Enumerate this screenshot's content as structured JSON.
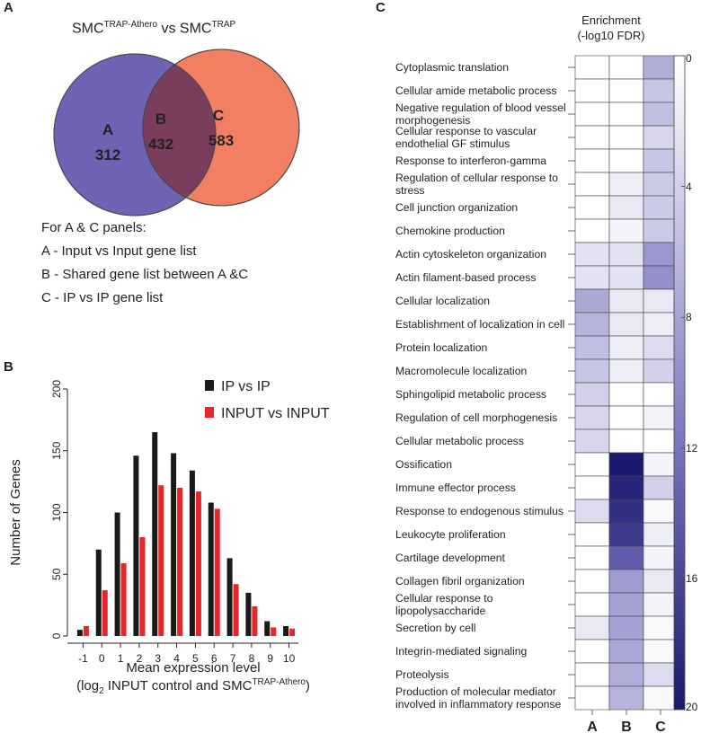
{
  "panel_labels": {
    "a": "A",
    "b": "B",
    "c": "C"
  },
  "venn": {
    "title_main": "SMC",
    "title_sup1": "TRAP-Athero",
    "title_vs": " vs SMC",
    "title_sup2": "TRAP",
    "circle_a_color": "#6f63b3",
    "circle_c_color": "#f27f62",
    "overlap_color": "#7a3d5e",
    "regions": [
      {
        "label": "A",
        "count": "312"
      },
      {
        "label": "B",
        "count": "432"
      },
      {
        "label": "C",
        "count": "583"
      }
    ],
    "legend": [
      "For A & C panels:",
      "A - Input vs Input gene list",
      "B - Shared gene list between A &C",
      "C - IP vs IP gene list"
    ]
  },
  "chart_data": {
    "type": "bar",
    "title": "",
    "ylabel": "Number of Genes",
    "xlabel_line1": "Mean expression level",
    "xlabel_line2_pre": "(log",
    "xlabel_line2_sub": "2",
    "xlabel_line2_mid": " INPUT control and SMC",
    "xlabel_line2_sup": "TRAP-Athero",
    "xlabel_line2_post": ")",
    "ylim": [
      0,
      200
    ],
    "yticks": [
      "0",
      "50",
      "100",
      "150",
      "200"
    ],
    "categories": [
      "-1",
      "0",
      "1",
      "2",
      "3",
      "4",
      "5",
      "6",
      "7",
      "8",
      "9",
      "10"
    ],
    "series": [
      {
        "name": "IP vs IP",
        "color": "#1a1a1a",
        "values": [
          5,
          70,
          100,
          146,
          165,
          148,
          134,
          108,
          63,
          35,
          12,
          8
        ]
      },
      {
        "name": "INPUT vs INPUT",
        "color": "#e8262a",
        "values": [
          8,
          37,
          59,
          80,
          122,
          120,
          117,
          103,
          42,
          24,
          7,
          6
        ]
      }
    ]
  },
  "heatmap": {
    "title_line1": "Enrichment",
    "title_line2": "(-log10 FDR)",
    "columns": [
      "A",
      "B",
      "C"
    ],
    "colorbar_ticks": [
      "0",
      "4",
      "8",
      "12",
      "16",
      "20"
    ],
    "scale_max": 20,
    "rows": [
      {
        "term": "Cytoplasmic translation",
        "values": [
          0,
          0,
          7
        ]
      },
      {
        "term": "Cellular amide metabolic process",
        "values": [
          0,
          0,
          5
        ]
      },
      {
        "term": "Negative regulation of blood vessel morphogenesis",
        "values": [
          0,
          0,
          5.5
        ]
      },
      {
        "term": "Cellular response to vascular endothelial GF stimulus",
        "values": [
          0,
          0,
          3.5
        ]
      },
      {
        "term": "Response to interferon-gamma",
        "values": [
          0,
          0,
          5
        ]
      },
      {
        "term": "Regulation of cellular response to stress",
        "values": [
          0,
          1.5,
          4.5
        ]
      },
      {
        "term": "Cell junction organization",
        "values": [
          0,
          2,
          4.5
        ]
      },
      {
        "term": "Chemokine production",
        "values": [
          0,
          1,
          4.5
        ]
      },
      {
        "term": "Actin cytoskeleton organization",
        "values": [
          2.5,
          2.5,
          9
        ]
      },
      {
        "term": "Actin filament-based process",
        "values": [
          2.5,
          2.5,
          9.5
        ]
      },
      {
        "term": "Cellular localization",
        "values": [
          7.5,
          2,
          2
        ]
      },
      {
        "term": "Establishment of localization in cell",
        "values": [
          6.5,
          2,
          1.5
        ]
      },
      {
        "term": "Protein localization",
        "values": [
          5.5,
          1.5,
          3
        ]
      },
      {
        "term": "Macromolecule localization",
        "values": [
          5,
          1.5,
          4
        ]
      },
      {
        "term": "Sphingolipid metabolic process",
        "values": [
          4,
          0,
          0
        ]
      },
      {
        "term": "Regulation of cell morphogenesis",
        "values": [
          3.5,
          0,
          1
        ]
      },
      {
        "term": "Cellular metabolic process",
        "values": [
          3.5,
          0,
          0
        ]
      },
      {
        "term": "Ossification",
        "values": [
          0,
          20,
          1
        ]
      },
      {
        "term": "Immune effector process",
        "values": [
          0,
          19,
          4
        ]
      },
      {
        "term": "Response to endogenous stimulus",
        "values": [
          3,
          18,
          0.5
        ]
      },
      {
        "term": "Leukocyte proliferation",
        "values": [
          0,
          17,
          1.5
        ]
      },
      {
        "term": "Cartilage development",
        "values": [
          0,
          14,
          1
        ]
      },
      {
        "term": "Collagen fibril organization",
        "values": [
          0,
          8.5,
          2
        ]
      },
      {
        "term": "Cellular response to lipopolysaccharide",
        "values": [
          0,
          8,
          1
        ]
      },
      {
        "term": "Secretion by cell",
        "values": [
          2,
          8,
          0.5
        ]
      },
      {
        "term": "Integrin-mediated signaling",
        "values": [
          0,
          7.5,
          0.5
        ]
      },
      {
        "term": "Proteolysis",
        "values": [
          0,
          7,
          3
        ]
      },
      {
        "term": "Production of molecular mediator involved in inflammatory response",
        "values": [
          0,
          6.5,
          0.5
        ]
      }
    ]
  }
}
